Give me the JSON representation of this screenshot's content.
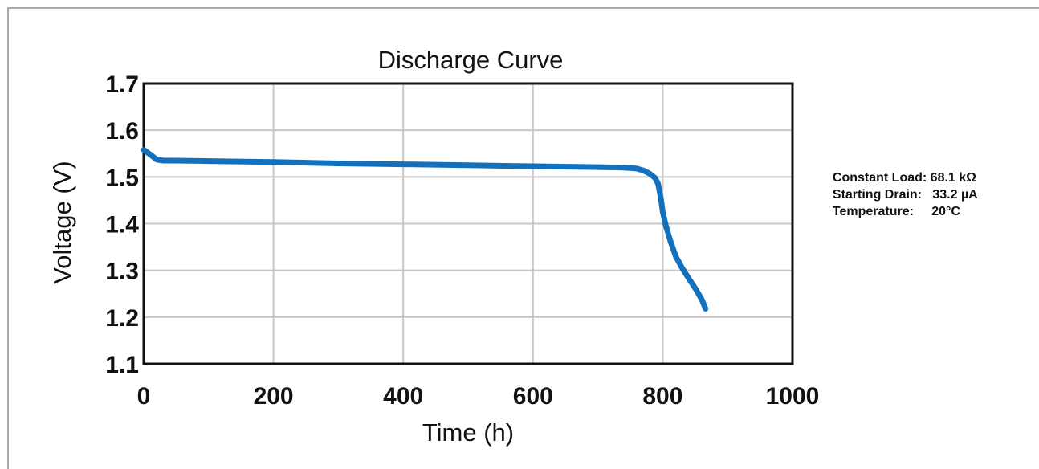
{
  "chart_data": {
    "type": "line",
    "title": "Discharge Curve",
    "xlabel": "Time (h)",
    "ylabel": "Voltage (V)",
    "xlim": [
      0,
      1000
    ],
    "ylim": [
      1.1,
      1.7
    ],
    "xticks": [
      "0",
      "200",
      "400",
      "600",
      "800",
      "1000"
    ],
    "yticks": [
      "1.1",
      "1.2",
      "1.3",
      "1.4",
      "1.5",
      "1.6",
      "1.7"
    ],
    "grid": true,
    "line_color": "#1270bd",
    "series": [
      {
        "x": [
          0,
          10,
          20,
          30,
          50,
          100,
          200,
          300,
          400,
          500,
          600,
          700,
          740,
          760,
          770,
          780,
          788,
          793,
          797,
          800,
          805,
          812,
          820,
          830,
          840,
          850,
          860,
          866
        ],
        "y": [
          1.558,
          1.548,
          1.537,
          1.535,
          1.535,
          1.534,
          1.532,
          1.529,
          1.527,
          1.525,
          1.523,
          1.521,
          1.52,
          1.518,
          1.514,
          1.507,
          1.498,
          1.485,
          1.455,
          1.425,
          1.395,
          1.362,
          1.33,
          1.305,
          1.283,
          1.262,
          1.238,
          1.218
        ]
      }
    ]
  },
  "notes": [
    {
      "label": "Constant Load:",
      "value": "68.1 kΩ"
    },
    {
      "label": "Starting Drain:",
      "value": "33.2 µA"
    },
    {
      "label": "Temperature:",
      "value": "20°C"
    }
  ]
}
